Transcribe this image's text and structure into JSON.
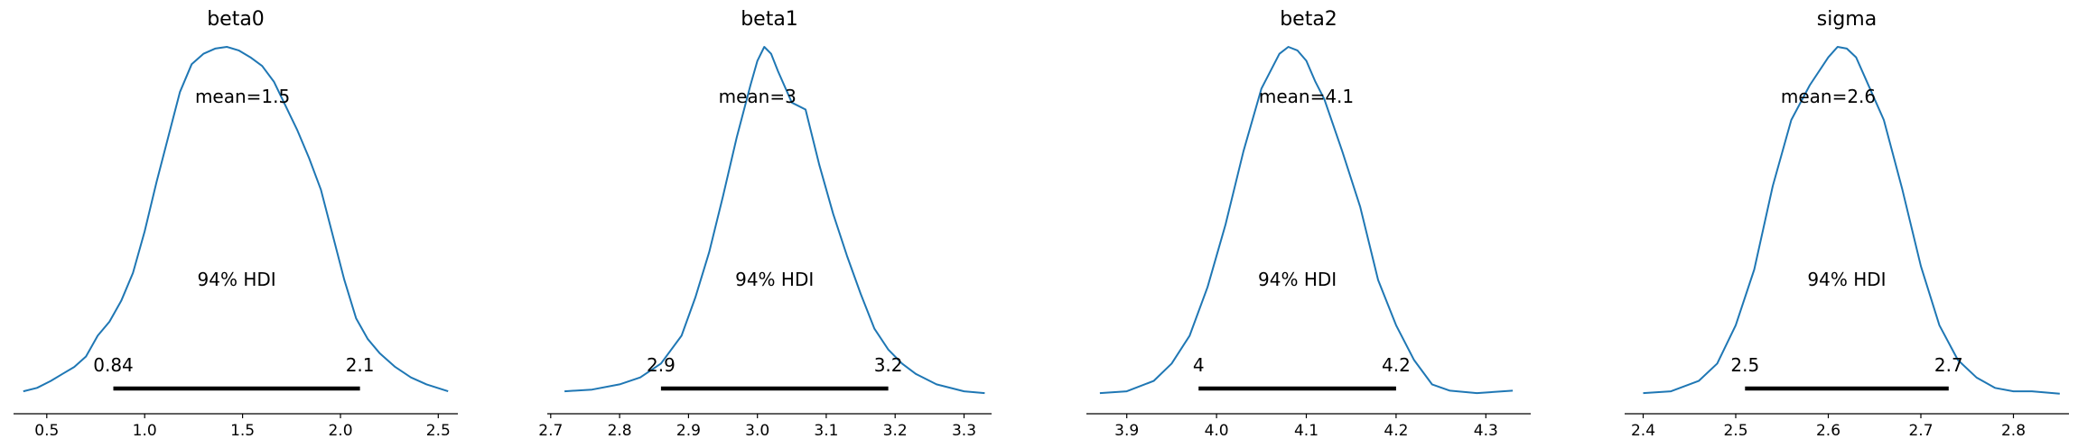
{
  "chart_data": [
    {
      "type": "density",
      "title": "beta0",
      "xlim": [
        0.33,
        2.6
      ],
      "xticks": [
        0.5,
        1.0,
        1.5,
        2.0,
        2.5
      ],
      "tick_labels": [
        "0.5",
        "1.0",
        "1.5",
        "2.0",
        "2.5"
      ],
      "mean": 1.5,
      "mean_label": "mean=1.5",
      "hdi_label": "94% HDI",
      "hdi": [
        0.84,
        2.1
      ],
      "hdi_low_label": "0.84",
      "hdi_high_label": "2.1",
      "density": {
        "x": [
          0.38,
          0.45,
          0.52,
          0.58,
          0.64,
          0.7,
          0.76,
          0.82,
          0.88,
          0.94,
          1.0,
          1.06,
          1.12,
          1.18,
          1.24,
          1.3,
          1.36,
          1.42,
          1.48,
          1.54,
          1.6,
          1.66,
          1.72,
          1.78,
          1.84,
          1.9,
          1.96,
          2.02,
          2.08,
          2.14,
          2.2,
          2.28,
          2.36,
          2.44,
          2.55
        ],
        "y": [
          0.01,
          0.02,
          0.04,
          0.06,
          0.08,
          0.11,
          0.17,
          0.21,
          0.27,
          0.35,
          0.47,
          0.61,
          0.74,
          0.87,
          0.95,
          0.98,
          0.995,
          1.0,
          0.99,
          0.97,
          0.945,
          0.9,
          0.83,
          0.76,
          0.68,
          0.59,
          0.46,
          0.33,
          0.22,
          0.16,
          0.12,
          0.08,
          0.05,
          0.03,
          0.01
        ]
      }
    },
    {
      "type": "density",
      "title": "beta1",
      "xlim": [
        2.695,
        3.34
      ],
      "xticks": [
        2.7,
        2.8,
        2.9,
        3.0,
        3.1,
        3.2,
        3.3
      ],
      "tick_labels": [
        "2.7",
        "2.8",
        "2.9",
        "3.0",
        "3.1",
        "3.2",
        "3.3"
      ],
      "mean": 3,
      "mean_label": "mean=3",
      "hdi_label": "94% HDI",
      "hdi": [
        2.86,
        3.19
      ],
      "hdi_low_label": "2.9",
      "hdi_high_label": "3.2",
      "density": {
        "x": [
          2.72,
          2.76,
          2.8,
          2.83,
          2.86,
          2.89,
          2.91,
          2.93,
          2.95,
          2.97,
          2.99,
          3.0,
          3.01,
          3.02,
          3.03,
          3.05,
          3.07,
          3.09,
          3.11,
          3.13,
          3.15,
          3.17,
          3.19,
          3.21,
          3.23,
          3.26,
          3.3,
          3.33
        ],
        "y": [
          0.01,
          0.015,
          0.03,
          0.05,
          0.09,
          0.17,
          0.28,
          0.41,
          0.57,
          0.74,
          0.89,
          0.96,
          1.0,
          0.98,
          0.93,
          0.84,
          0.82,
          0.66,
          0.52,
          0.4,
          0.29,
          0.19,
          0.13,
          0.09,
          0.06,
          0.03,
          0.01,
          0.005
        ]
      }
    },
    {
      "type": "density",
      "title": "beta2",
      "xlim": [
        3.855,
        4.35
      ],
      "xticks": [
        3.9,
        4.0,
        4.1,
        4.2,
        4.3
      ],
      "tick_labels": [
        "3.9",
        "4.0",
        "4.1",
        "4.2",
        "4.3"
      ],
      "mean": 4.1,
      "mean_label": "mean=4.1",
      "hdi_label": "94% HDI",
      "hdi": [
        3.98,
        4.2
      ],
      "hdi_low_label": "4",
      "hdi_high_label": "4.2",
      "density": {
        "x": [
          3.87,
          3.9,
          3.93,
          3.95,
          3.97,
          3.99,
          4.01,
          4.03,
          4.05,
          4.07,
          4.08,
          4.09,
          4.1,
          4.11,
          4.12,
          4.14,
          4.16,
          4.18,
          4.2,
          4.22,
          4.24,
          4.26,
          4.29,
          4.33
        ],
        "y": [
          0.005,
          0.01,
          0.04,
          0.09,
          0.17,
          0.31,
          0.49,
          0.7,
          0.88,
          0.98,
          1.0,
          0.99,
          0.96,
          0.9,
          0.85,
          0.7,
          0.54,
          0.33,
          0.2,
          0.1,
          0.03,
          0.012,
          0.005,
          0.012
        ]
      }
    },
    {
      "type": "density",
      "title": "sigma",
      "xlim": [
        2.38,
        2.86
      ],
      "xticks": [
        2.4,
        2.5,
        2.6,
        2.7,
        2.8
      ],
      "tick_labels": [
        "2.4",
        "2.5",
        "2.6",
        "2.7",
        "2.8"
      ],
      "mean": 2.6,
      "mean_label": "mean=2.6",
      "hdi_label": "94% HDI",
      "hdi": [
        2.51,
        2.73
      ],
      "hdi_low_label": "2.5",
      "hdi_high_label": "2.7",
      "density": {
        "x": [
          2.4,
          2.43,
          2.46,
          2.48,
          2.5,
          2.52,
          2.54,
          2.56,
          2.58,
          2.6,
          2.61,
          2.62,
          2.63,
          2.64,
          2.66,
          2.68,
          2.7,
          2.72,
          2.74,
          2.76,
          2.78,
          2.8,
          2.82,
          2.85
        ],
        "y": [
          0.005,
          0.01,
          0.04,
          0.09,
          0.2,
          0.36,
          0.6,
          0.79,
          0.89,
          0.97,
          1.0,
          0.995,
          0.97,
          0.91,
          0.79,
          0.59,
          0.37,
          0.2,
          0.1,
          0.05,
          0.02,
          0.01,
          0.01,
          0.003
        ]
      }
    }
  ],
  "style": {
    "curve_color": "#1f77b4",
    "hdi_color": "#000000",
    "axis_color": "#000000"
  }
}
